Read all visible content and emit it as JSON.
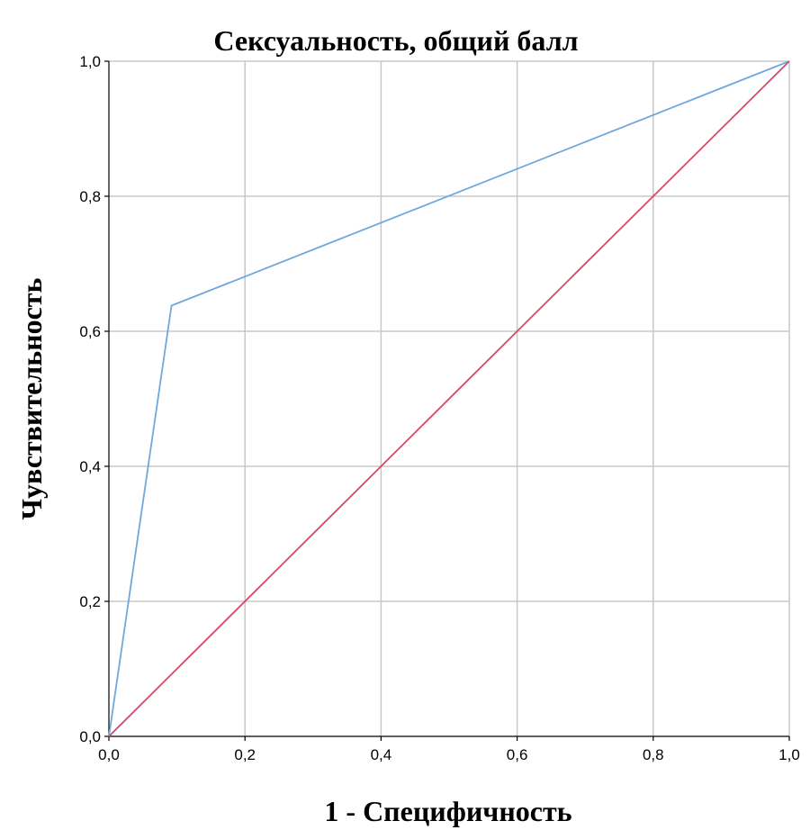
{
  "chart_data": {
    "type": "line",
    "title": "Сексуальность, общий балл",
    "xlabel": "1 - Специфичность",
    "ylabel": "Чувствительность",
    "xlim": [
      0,
      1
    ],
    "ylim": [
      0,
      1
    ],
    "x_ticks": [
      "0,0",
      "0,2",
      "0,4",
      "0,6",
      "0,8",
      "1,0"
    ],
    "y_ticks": [
      "0,0",
      "0,2",
      "0,4",
      "0,6",
      "0,8",
      "1,0"
    ],
    "grid": true,
    "series": [
      {
        "color": "#6fa8dc",
        "points": [
          [
            0,
            0
          ],
          [
            0.092,
            0.638
          ],
          [
            1,
            1
          ]
        ]
      },
      {
        "color": "#d64a6b",
        "points": [
          [
            0,
            0
          ],
          [
            1,
            1
          ]
        ]
      }
    ]
  }
}
